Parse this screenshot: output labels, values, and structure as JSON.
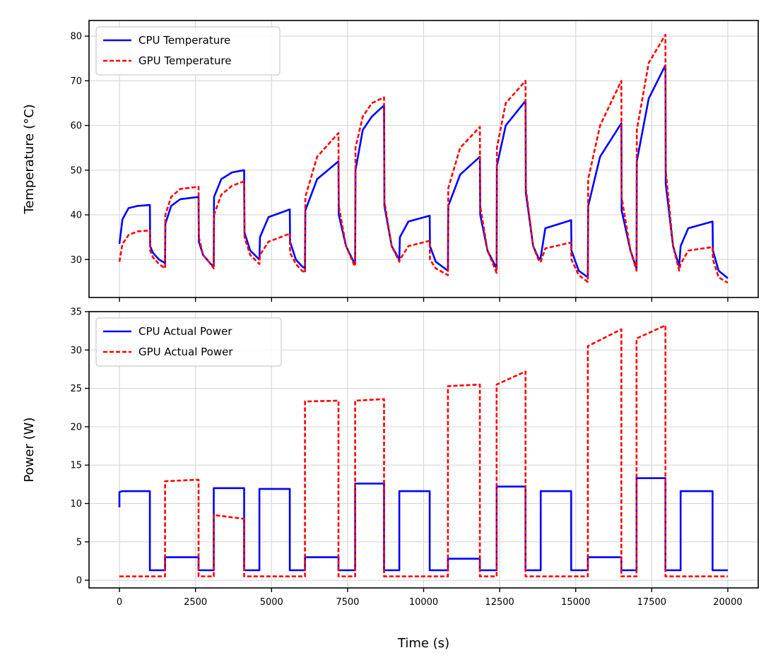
{
  "chart_data": [
    {
      "type": "line",
      "title": "",
      "xlabel": "",
      "ylabel": "Temperature (°C)",
      "xlim": [
        -1000,
        21000
      ],
      "ylim": [
        21.5,
        83.5
      ],
      "grid": true,
      "legend_position": "top-left",
      "x_ticks": [
        0,
        2500,
        5000,
        7500,
        10000,
        12500,
        15000,
        17500,
        20000
      ],
      "y_ticks": [
        30,
        40,
        50,
        60,
        70,
        80
      ],
      "y_tick_labels": [
        "30",
        "40",
        "50",
        "60",
        "70",
        "80"
      ],
      "series": [
        {
          "name": "CPU Temperature",
          "color": "#0000ff",
          "style": "solid",
          "x": [
            0,
            100,
            300,
            600,
            1000,
            1010,
            1100,
            1300,
            1500,
            1510,
            1700,
            2000,
            2600,
            2610,
            2750,
            3000,
            3100,
            3110,
            3350,
            3700,
            4100,
            4110,
            4300,
            4600,
            4620,
            4900,
            5600,
            5610,
            5800,
            6000,
            6100,
            6110,
            6500,
            7200,
            7210,
            7450,
            7700,
            7750,
            7760,
            8000,
            8300,
            8700,
            8710,
            8950,
            9200,
            9220,
            9500,
            10200,
            10210,
            10400,
            10800,
            10810,
            11200,
            11850,
            11860,
            12100,
            12400,
            12410,
            12700,
            13350,
            13360,
            13600,
            13800,
            13850,
            14000,
            14850,
            14860,
            15100,
            15400,
            15410,
            15800,
            16500,
            16510,
            16800,
            17000,
            17010,
            17400,
            17950,
            17960,
            18200,
            18400,
            18450,
            18700,
            19500,
            19510,
            19700,
            20000
          ],
          "values": [
            33.5,
            39,
            41.5,
            42,
            42.2,
            33,
            31.5,
            30,
            29.2,
            38,
            42,
            43.5,
            44,
            34,
            31,
            29,
            28.5,
            44,
            48,
            49.5,
            50,
            36,
            32,
            30,
            35,
            39.5,
            41.2,
            34,
            30,
            28.5,
            28,
            41,
            48,
            52,
            40,
            33,
            29.5,
            29.2,
            50,
            59,
            62,
            64.5,
            42,
            33,
            30,
            35,
            38.5,
            39.8,
            33,
            29.5,
            27.5,
            42,
            49,
            53,
            40,
            32,
            28,
            51,
            60,
            65.5,
            45,
            33,
            30,
            30.5,
            37,
            38.8,
            32,
            27.5,
            26,
            42,
            53,
            60.5,
            41,
            32,
            28,
            52,
            66,
            73.5,
            47,
            33,
            28.5,
            33,
            37,
            38.5,
            32,
            27.5,
            25.8
          ]
        },
        {
          "name": "GPU Temperature",
          "color": "#ff0000",
          "style": "dashed",
          "x": [
            0,
            100,
            300,
            600,
            1000,
            1010,
            1100,
            1300,
            1500,
            1510,
            1700,
            2000,
            2600,
            2610,
            2750,
            3000,
            3100,
            3110,
            3350,
            3700,
            4100,
            4110,
            4300,
            4600,
            4620,
            4900,
            5600,
            5610,
            5800,
            6000,
            6100,
            6110,
            6500,
            7200,
            7210,
            7450,
            7700,
            7750,
            7760,
            8000,
            8300,
            8700,
            8710,
            8950,
            9200,
            9220,
            9500,
            10200,
            10210,
            10400,
            10800,
            10810,
            11200,
            11850,
            11860,
            12100,
            12400,
            12410,
            12700,
            13350,
            13360,
            13600,
            13800,
            13850,
            14000,
            14850,
            14860,
            15100,
            15400,
            15410,
            15800,
            16500,
            16510,
            16800,
            17000,
            17010,
            17400,
            17950,
            17960,
            18200,
            18400,
            18450,
            18700,
            19500,
            19510,
            19700,
            20000
          ],
          "values": [
            29.5,
            33.5,
            35.5,
            36.3,
            36.5,
            32,
            30.5,
            29,
            28,
            40,
            44,
            45.8,
            46.3,
            35,
            31,
            29,
            28,
            40,
            44.5,
            46.5,
            47.5,
            35,
            31,
            29,
            31,
            34,
            35.8,
            31.5,
            29,
            27.5,
            27,
            44,
            53,
            58.3,
            42,
            33,
            29,
            28.5,
            55,
            62,
            65,
            66.3,
            43,
            33,
            29.5,
            30,
            33,
            34.2,
            30,
            28,
            26.5,
            46,
            55,
            59.7,
            42,
            32,
            27,
            55,
            65,
            70,
            46,
            33,
            29.5,
            29.5,
            32.5,
            33.8,
            30,
            26.5,
            25,
            48,
            60,
            70,
            44,
            32,
            27.5,
            59,
            74,
            80.3,
            50,
            33,
            27.5,
            29,
            32,
            32.8,
            30,
            26,
            24.8
          ]
        }
      ]
    },
    {
      "type": "line",
      "title": "",
      "xlabel": "Time (s)",
      "ylabel": "Power (W)",
      "xlim": [
        -1000,
        21000
      ],
      "ylim": [
        -1.0,
        35.0
      ],
      "grid": true,
      "legend_position": "top-left",
      "x_ticks": [
        0,
        2500,
        5000,
        7500,
        10000,
        12500,
        15000,
        17500,
        20000
      ],
      "x_tick_labels": [
        "0",
        "2500",
        "5000",
        "7500",
        "10000",
        "12500",
        "15000",
        "17500",
        "20000"
      ],
      "y_ticks": [
        0,
        5,
        10,
        15,
        20,
        25,
        30,
        35
      ],
      "y_tick_labels": [
        "0",
        "5",
        "10",
        "15",
        "20",
        "25",
        "30",
        "35"
      ],
      "series": [
        {
          "name": "CPU Actual Power",
          "color": "#0000ff",
          "style": "solid",
          "x": [
            0,
            0,
            100,
            1000,
            1000,
            1500,
            1500,
            2600,
            2600,
            3100,
            3100,
            4100,
            4100,
            4600,
            4600,
            5600,
            5600,
            6100,
            6100,
            7200,
            7200,
            7750,
            7750,
            8700,
            8700,
            9200,
            9200,
            10200,
            10200,
            10800,
            10800,
            11850,
            11850,
            12400,
            12400,
            13350,
            13350,
            13850,
            13850,
            14850,
            14850,
            15400,
            15400,
            16500,
            16500,
            17000,
            17000,
            17950,
            17950,
            18450,
            18450,
            19500,
            19500,
            20000
          ],
          "values": [
            9.5,
            11.5,
            11.6,
            11.6,
            1.3,
            1.3,
            3.0,
            3.0,
            1.3,
            1.3,
            12.0,
            12.0,
            1.3,
            1.3,
            11.9,
            11.9,
            1.3,
            1.3,
            3.0,
            3.0,
            1.3,
            1.3,
            12.6,
            12.6,
            1.3,
            1.3,
            11.6,
            11.6,
            1.3,
            1.3,
            2.8,
            2.8,
            1.3,
            1.3,
            12.2,
            12.2,
            1.3,
            1.3,
            11.6,
            11.6,
            1.3,
            1.3,
            3.0,
            3.0,
            1.3,
            1.3,
            13.3,
            13.3,
            1.3,
            1.3,
            11.6,
            11.6,
            1.3,
            1.3
          ]
        },
        {
          "name": "GPU Actual Power",
          "color": "#ff0000",
          "style": "dashed",
          "x": [
            0,
            1500,
            1500,
            2600,
            2600,
            3100,
            3100,
            4100,
            4100,
            6100,
            6100,
            7200,
            7200,
            7750,
            7750,
            8700,
            8700,
            10800,
            10800,
            11850,
            11850,
            12400,
            12400,
            13350,
            13350,
            15400,
            15400,
            16500,
            16500,
            17000,
            17000,
            17950,
            17950,
            20000
          ],
          "values": [
            0.5,
            0.5,
            12.9,
            13.1,
            0.5,
            0.5,
            8.5,
            8.0,
            0.5,
            0.5,
            23.3,
            23.4,
            0.5,
            0.5,
            23.4,
            23.6,
            0.5,
            0.5,
            25.3,
            25.5,
            0.5,
            0.5,
            25.5,
            27.2,
            0.5,
            0.5,
            30.5,
            32.7,
            0.5,
            0.5,
            31.5,
            33.2,
            0.5,
            0.5
          ]
        }
      ]
    }
  ]
}
